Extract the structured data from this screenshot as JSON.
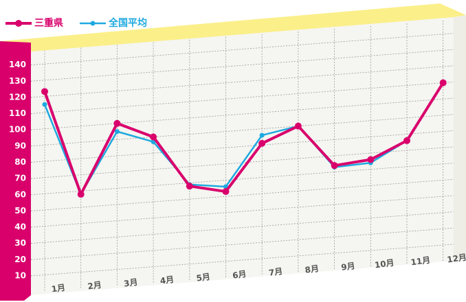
{
  "chart_data": {
    "type": "line",
    "categories": [
      "1月",
      "2月",
      "3月",
      "4月",
      "5月",
      "6月",
      "7月",
      "8月",
      "9月",
      "10月",
      "11月",
      "12月"
    ],
    "series": [
      {
        "name": "三重県",
        "color": "#d9006c",
        "values": [
          123,
          58,
          100,
          90,
          58,
          53,
          81,
          90,
          64,
          66,
          76,
          110
        ]
      },
      {
        "name": "全国平均",
        "color": "#1ea9df",
        "values": [
          115,
          58,
          95,
          87,
          59,
          56,
          86,
          90,
          63,
          64,
          76,
          110
        ]
      }
    ],
    "ylim": [
      0,
      150
    ],
    "yticks": [
      10,
      20,
      30,
      40,
      50,
      60,
      70,
      80,
      90,
      100,
      110,
      120,
      130,
      140
    ],
    "grid": true,
    "legend": "top-left"
  }
}
